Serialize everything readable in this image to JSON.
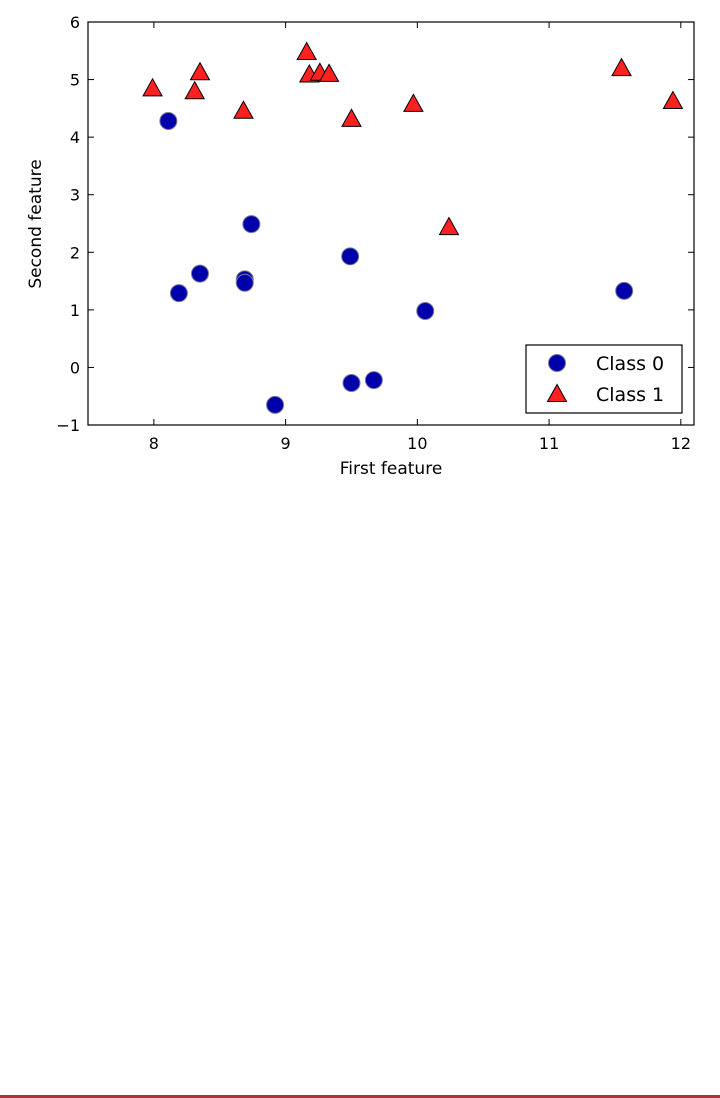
{
  "chart_data": {
    "type": "scatter",
    "title": "",
    "xlabel": "First feature",
    "ylabel": "Second feature",
    "xlim": [
      7.5,
      12.1
    ],
    "ylim": [
      -1,
      6
    ],
    "xticks": [
      8,
      9,
      10,
      11,
      12
    ],
    "yticks": [
      -1,
      0,
      1,
      2,
      3,
      4,
      5,
      6
    ],
    "grid": false,
    "legend_position": "lower-right",
    "series": [
      {
        "name": "Class 0",
        "marker": "circle",
        "color": "#0000aa",
        "x": [
          8.11,
          8.19,
          8.35,
          8.69,
          8.69,
          8.74,
          8.92,
          9.49,
          9.5,
          9.67,
          10.06,
          11.57
        ],
        "y": [
          4.28,
          1.29,
          1.63,
          1.53,
          1.47,
          2.49,
          -0.65,
          1.93,
          -0.27,
          -0.22,
          0.98,
          1.33
        ]
      },
      {
        "name": "Class 1",
        "marker": "triangle",
        "color": "#ff2020",
        "x": [
          7.99,
          8.31,
          8.35,
          8.68,
          9.16,
          9.18,
          9.26,
          9.33,
          9.5,
          9.97,
          10.24,
          11.55,
          11.94
        ],
        "y": [
          4.83,
          4.78,
          5.11,
          4.44,
          5.46,
          5.07,
          5.1,
          5.08,
          4.3,
          4.56,
          2.42,
          5.18,
          4.61
        ]
      }
    ]
  },
  "colors": {
    "page_rule": "#b03040"
  }
}
